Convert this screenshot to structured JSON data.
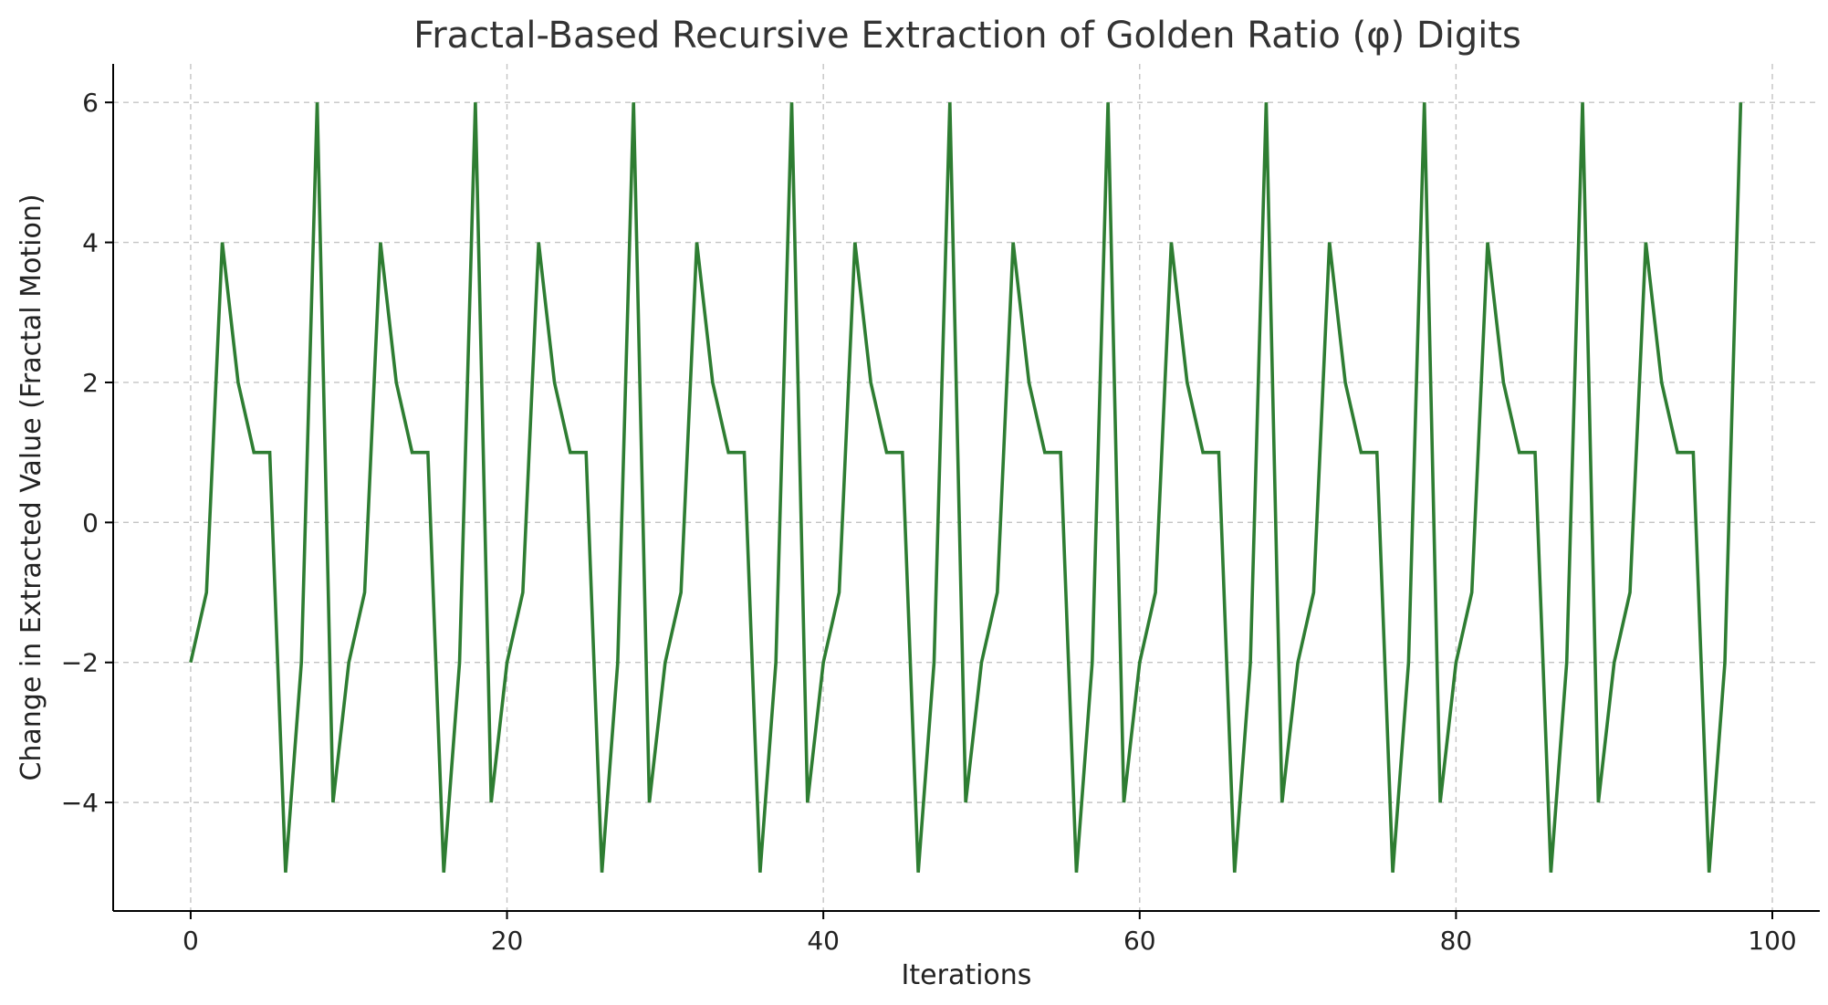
{
  "chart_data": {
    "type": "line",
    "title": "Fractal-Based Recursive Extraction of Golden Ratio (φ) Digits",
    "xlabel": "Iterations",
    "ylabel": "Change in Extracted Value (Fractal Motion)",
    "xlim": [
      -4.9,
      103
    ],
    "ylim": [
      -5.55,
      6.55
    ],
    "xticks": [
      0,
      20,
      40,
      60,
      80,
      100
    ],
    "yticks": [
      -4,
      -2,
      0,
      2,
      4,
      6
    ],
    "xtick_labels": [
      "0",
      "20",
      "40",
      "60",
      "80",
      "100"
    ],
    "ytick_labels": [
      "−4",
      "−2",
      "0",
      "2",
      "4",
      "6"
    ],
    "grid": true,
    "color": "#2e7d32",
    "x": [
      0,
      1,
      2,
      3,
      4,
      5,
      6,
      7,
      8,
      9,
      10,
      11,
      12,
      13,
      14,
      15,
      16,
      17,
      18,
      19,
      20,
      21,
      22,
      23,
      24,
      25,
      26,
      27,
      28,
      29,
      30,
      31,
      32,
      33,
      34,
      35,
      36,
      37,
      38,
      39,
      40,
      41,
      42,
      43,
      44,
      45,
      46,
      47,
      48,
      49,
      50,
      51,
      52,
      53,
      54,
      55,
      56,
      57,
      58,
      59,
      60,
      61,
      62,
      63,
      64,
      65,
      66,
      67,
      68,
      69,
      70,
      71,
      72,
      73,
      74,
      75,
      76,
      77,
      78,
      79,
      80,
      81,
      82,
      83,
      84,
      85,
      86,
      87,
      88,
      89,
      90,
      91,
      92,
      93,
      94,
      95,
      96,
      97,
      98
    ],
    "y": [
      -2,
      -1,
      4,
      2,
      1,
      1,
      -5,
      -2,
      6,
      -4,
      -2,
      -1,
      4,
      2,
      1,
      1,
      -5,
      -2,
      6,
      -4,
      -2,
      -1,
      4,
      2,
      1,
      1,
      -5,
      -2,
      6,
      -4,
      -2,
      -1,
      4,
      2,
      1,
      1,
      -5,
      -2,
      6,
      -4,
      -2,
      -1,
      4,
      2,
      1,
      1,
      -5,
      -2,
      6,
      -4,
      -2,
      -1,
      4,
      2,
      1,
      1,
      -5,
      -2,
      6,
      -4,
      -2,
      -1,
      4,
      2,
      1,
      1,
      -5,
      -2,
      6,
      -4,
      -2,
      -1,
      4,
      2,
      1,
      1,
      -5,
      -2,
      6,
      -4,
      -2,
      -1,
      4,
      2,
      1,
      1,
      -5,
      -2,
      6,
      -4,
      -2,
      -1,
      4,
      2,
      1,
      1,
      -5,
      -2,
      6
    ]
  }
}
